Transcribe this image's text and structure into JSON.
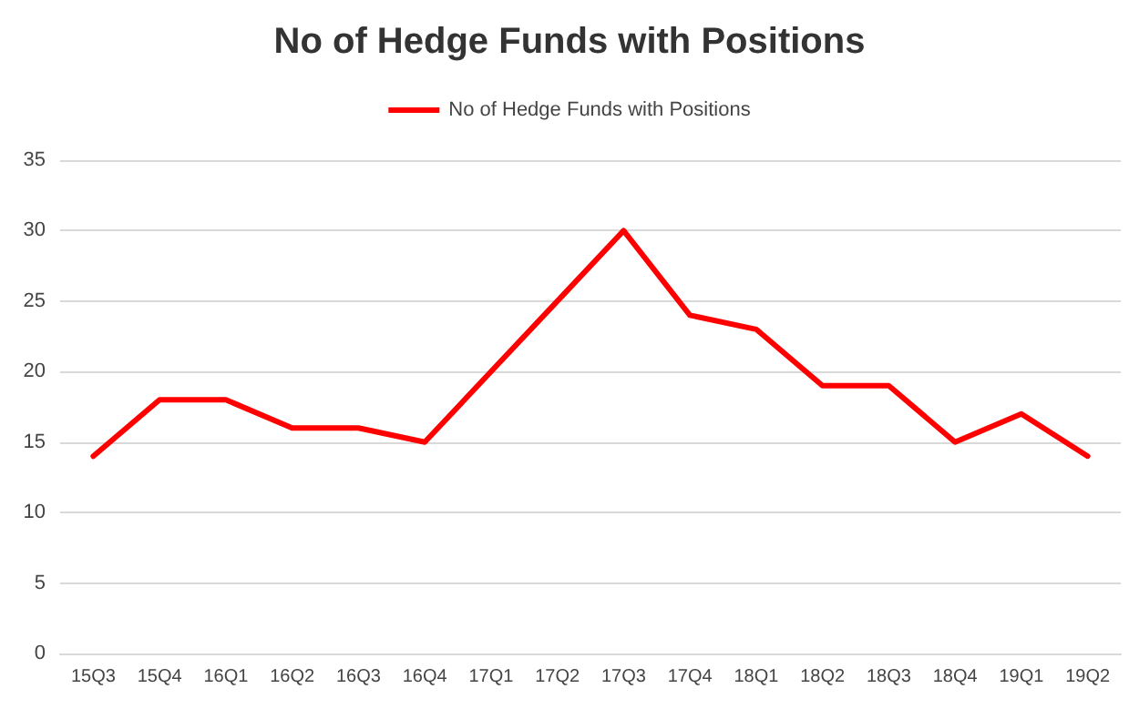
{
  "chart_data": {
    "type": "line",
    "title": "No of Hedge Funds with Positions",
    "categories": [
      "15Q3",
      "15Q4",
      "16Q1",
      "16Q2",
      "16Q3",
      "16Q4",
      "17Q1",
      "17Q2",
      "17Q3",
      "17Q4",
      "18Q1",
      "18Q2",
      "18Q3",
      "18Q4",
      "19Q1",
      "19Q2"
    ],
    "series": [
      {
        "name": "No of Hedge Funds with Positions",
        "color": "#ff0000",
        "values": [
          14,
          18,
          18,
          16,
          16,
          15,
          20,
          25,
          30,
          24,
          23,
          19,
          19,
          15,
          17,
          14
        ]
      }
    ],
    "ylim": [
      0,
      35
    ],
    "yticks": [
      0,
      5,
      10,
      15,
      20,
      25,
      30,
      35
    ],
    "grid": "y",
    "legend": "top",
    "marker": "none",
    "line_style": "solid"
  }
}
